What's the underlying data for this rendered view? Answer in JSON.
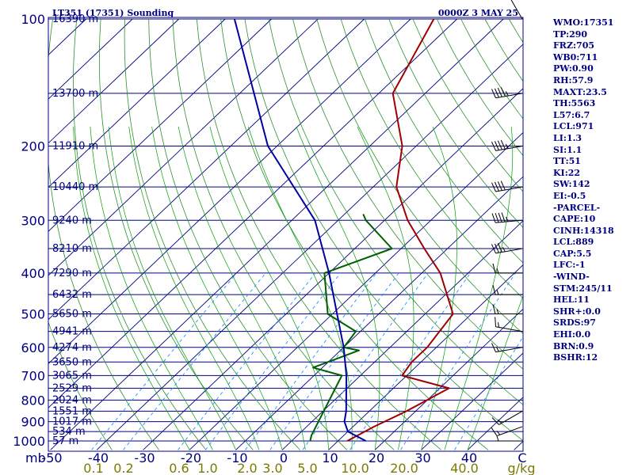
{
  "header": {
    "station": "LT351 (17351) Sounding",
    "time": "0000Z  3 MAY 25"
  },
  "stats": [
    "WMO:17351",
    "TP:290",
    "FRZ:705",
    "WB0:711",
    "PW:0.90",
    "RH:57.9",
    "MAXT:23.5",
    "TH:5563",
    "L57:6.7",
    "LCL:971",
    "LI:1.3",
    "SI:1.1",
    "TT:51",
    "KI:22",
    "SW:142",
    "EI:-0.5",
    "-PARCEL-",
    "CAPE:10",
    "CINH:14318",
    "LCL:889",
    "CAP:5.5",
    "LFC:-1",
    "-WIND-",
    "STM:245/11",
    "HEL:11",
    "SHR+:0.0",
    "SRDS:97",
    "EHI:0.0",
    "BRN:0.9",
    "BSHR:12"
  ],
  "colors": {
    "isobar": "#000080",
    "isotherm": "#000080",
    "dry_adiabat": "#2d8f2d",
    "moist_adiabat": "#00a000",
    "mixing_ratio": "#1e90ff",
    "temperature": "#a00000",
    "dewpoint": "#006000",
    "parcel": "#0000a0",
    "wind_barbs": "#000000"
  },
  "chart_data": {
    "type": "skew-t",
    "title": "LT351 (17351) Sounding",
    "xlabel": "C",
    "ylabel": "mb",
    "x_ticks": [
      -50,
      -40,
      -30,
      -20,
      -10,
      0,
      10,
      20,
      30,
      40
    ],
    "y_ticks": [
      100,
      200,
      300,
      400,
      500,
      600,
      700,
      800,
      900,
      1000
    ],
    "mixing_ratio_labels": [
      "0.1",
      "0.2",
      "0.6",
      "1.0",
      "2.0",
      "3.0",
      "5.0",
      "10.0",
      "20.0",
      "40.0"
    ],
    "mixing_ratio_unit": "g/kg",
    "height_labels": [
      {
        "p": 100,
        "label": "16390 m"
      },
      {
        "p": 150,
        "label": "13700 m"
      },
      {
        "p": 200,
        "label": "11910 m"
      },
      {
        "p": 250,
        "label": "10440 m"
      },
      {
        "p": 300,
        "label": "9240 m"
      },
      {
        "p": 350,
        "label": "8210 m"
      },
      {
        "p": 400,
        "label": "7290 m"
      },
      {
        "p": 450,
        "label": "6432 m"
      },
      {
        "p": 500,
        "label": "5650 m"
      },
      {
        "p": 550,
        "label": "4941 m"
      },
      {
        "p": 600,
        "label": "4274 m"
      },
      {
        "p": 650,
        "label": "3650 m"
      },
      {
        "p": 700,
        "label": "3065 m"
      },
      {
        "p": 750,
        "label": "2529 m"
      },
      {
        "p": 800,
        "label": "2024 m"
      },
      {
        "p": 850,
        "label": "1551 m"
      },
      {
        "p": 900,
        "label": "1017 m"
      },
      {
        "p": 950,
        "label": "534 m"
      },
      {
        "p": 1000,
        "label": "57 m"
      }
    ],
    "series": [
      {
        "name": "temperature",
        "points": [
          {
            "p": 1000,
            "t": 12
          },
          {
            "p": 925,
            "t": 14.5
          },
          {
            "p": 850,
            "t": 18
          },
          {
            "p": 750,
            "t": 22
          },
          {
            "p": 700,
            "t": 9
          },
          {
            "p": 650,
            "t": 8
          },
          {
            "p": 600,
            "t": 8
          },
          {
            "p": 500,
            "t": 6
          },
          {
            "p": 400,
            "t": -6
          },
          {
            "p": 350,
            "t": -15
          },
          {
            "p": 300,
            "t": -25
          },
          {
            "p": 250,
            "t": -35
          },
          {
            "p": 200,
            "t": -43
          },
          {
            "p": 150,
            "t": -57
          },
          {
            "p": 100,
            "t": -65
          }
        ]
      },
      {
        "name": "dewpoint",
        "points": [
          {
            "p": 1000,
            "t": 4
          },
          {
            "p": 970,
            "t": 3
          },
          {
            "p": 700,
            "t": -4
          },
          {
            "p": 670,
            "t": -12
          },
          {
            "p": 610,
            "t": -6
          },
          {
            "p": 600,
            "t": -10
          },
          {
            "p": 550,
            "t": -11
          },
          {
            "p": 500,
            "t": -21
          },
          {
            "p": 400,
            "t": -31
          },
          {
            "p": 350,
            "t": -22
          },
          {
            "p": 300,
            "t": -34
          },
          {
            "p": 290,
            "t": -36
          }
        ]
      },
      {
        "name": "parcel",
        "points": [
          {
            "p": 1000,
            "t": 16
          },
          {
            "p": 950,
            "t": 10
          },
          {
            "p": 900,
            "t": 7
          },
          {
            "p": 850,
            "t": 5
          },
          {
            "p": 700,
            "t": -3
          },
          {
            "p": 600,
            "t": -10
          },
          {
            "p": 500,
            "t": -19
          },
          {
            "p": 400,
            "t": -30
          },
          {
            "p": 300,
            "t": -45
          },
          {
            "p": 200,
            "t": -72
          },
          {
            "p": 100,
            "t": -108
          }
        ]
      }
    ],
    "wind_barbs": [
      {
        "p": 100,
        "dir": 330,
        "spd": 50
      },
      {
        "p": 150,
        "dir": 260,
        "spd": 45
      },
      {
        "p": 200,
        "dir": 260,
        "spd": 45
      },
      {
        "p": 250,
        "dir": 260,
        "spd": 40
      },
      {
        "p": 300,
        "dir": 265,
        "spd": 45
      },
      {
        "p": 350,
        "dir": 260,
        "spd": 35
      },
      {
        "p": 400,
        "dir": 270,
        "spd": 15
      },
      {
        "p": 450,
        "dir": 270,
        "spd": 15
      },
      {
        "p": 500,
        "dir": 270,
        "spd": 15
      },
      {
        "p": 550,
        "dir": 280,
        "spd": 15
      },
      {
        "p": 600,
        "dir": 260,
        "spd": 15
      },
      {
        "p": 850,
        "dir": 240,
        "spd": 15
      },
      {
        "p": 925,
        "dir": 250,
        "spd": 15
      },
      {
        "p": 1000,
        "dir": 270,
        "spd": 5
      }
    ]
  }
}
